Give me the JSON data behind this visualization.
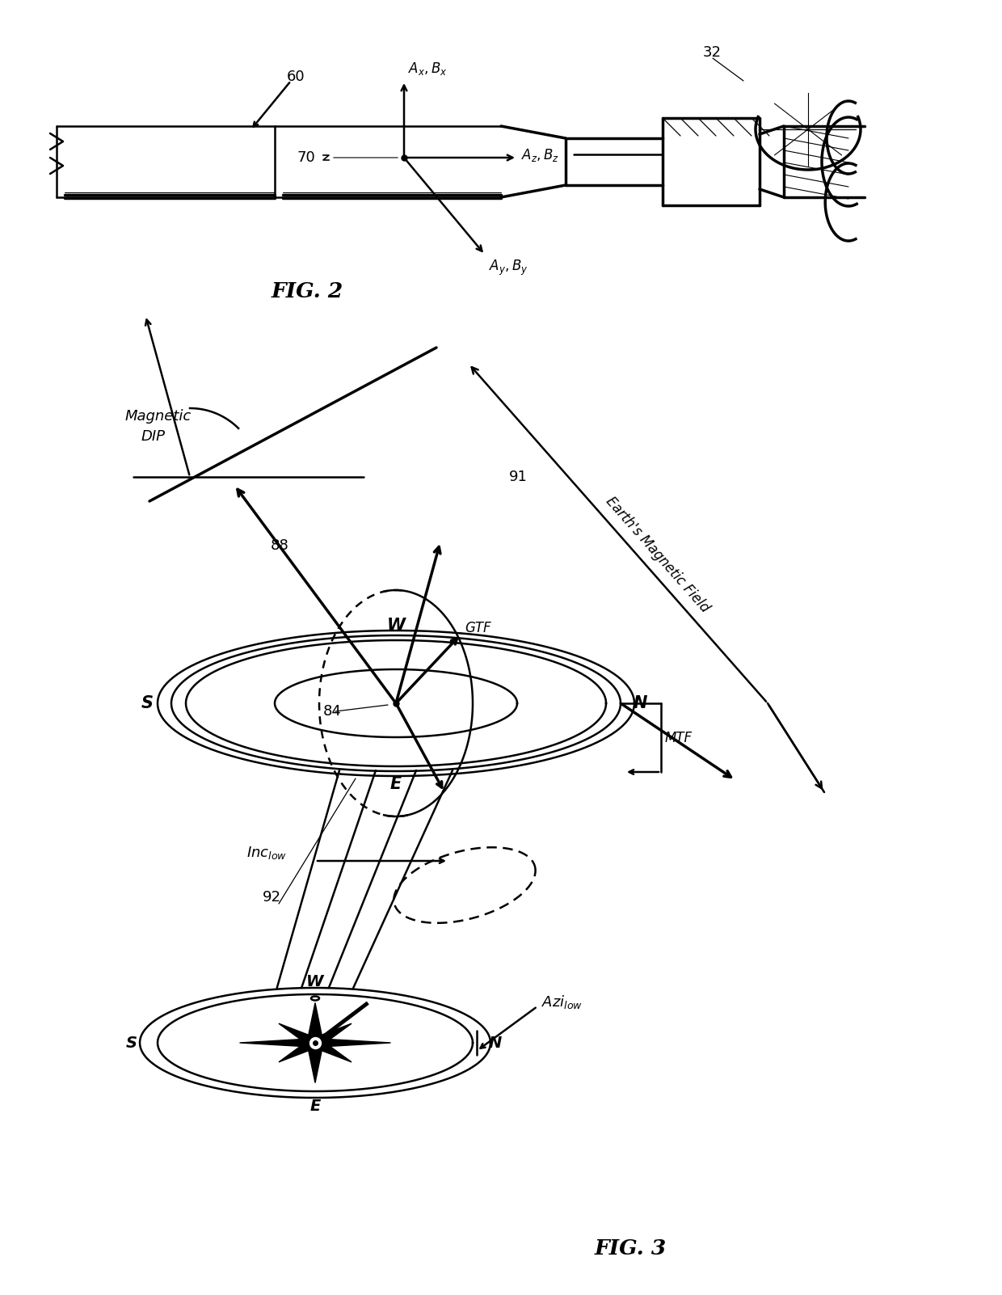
{
  "bg_color": "#ffffff",
  "line_color": "#000000",
  "fig2_label": "FIG. 2",
  "fig3_label": "FIG. 3",
  "ref_60": "60",
  "ref_32": "32",
  "ref_70": "70",
  "ref_88": "88",
  "ref_91": "91",
  "ref_84": "84",
  "ref_92": "92",
  "label_ax_bx": "$A_x,B_x$",
  "label_az_bz": "$A_z,B_z$",
  "label_ay_by": "$A_y,B_y$",
  "label_gtf": "GTF",
  "label_mtf": "MTF",
  "label_mag_dip_1": "Magnetic",
  "label_mag_dip_2": "DIP",
  "label_earths_mag": "Earth's Magnetic Field",
  "label_inc_low": "$Inc_{low}$",
  "label_azi_low": "$Azi_{low}$",
  "label_N": "N",
  "label_S": "S",
  "label_E": "E",
  "label_W": "W"
}
